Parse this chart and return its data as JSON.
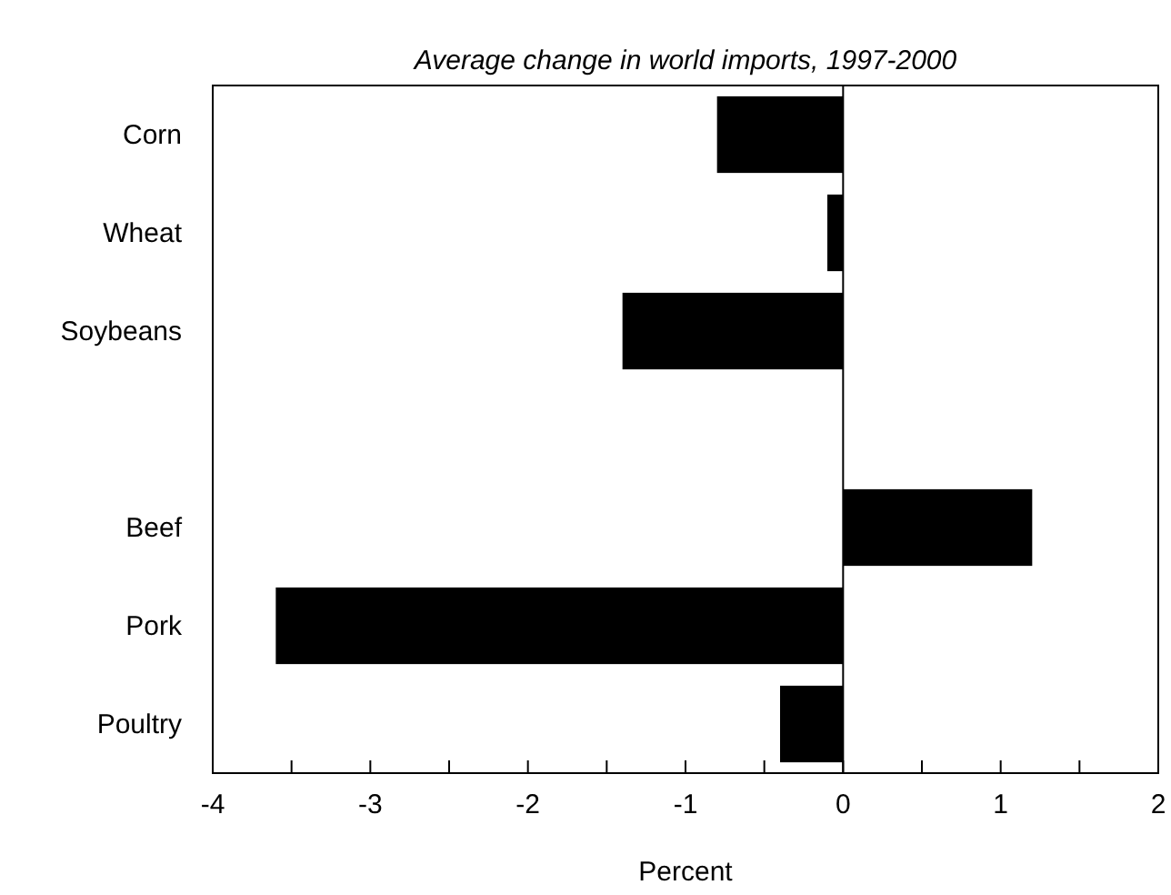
{
  "chart_data": {
    "type": "bar",
    "orientation": "horizontal",
    "title": "Average change in world imports, 1997-2000",
    "xlabel": "Percent",
    "categories": [
      "Corn",
      "Wheat",
      "Soybeans",
      null,
      "Beef",
      "Pork",
      "Poultry"
    ],
    "values": [
      -0.8,
      -0.1,
      -1.4,
      null,
      1.2,
      -3.6,
      -0.4
    ],
    "color": "#000000",
    "xlim": [
      -4,
      2
    ],
    "xticks": [
      -4,
      {
        "value": -3.5,
        "label": null
      },
      -3,
      {
        "value": -2.5,
        "label": null
      },
      -2,
      {
        "value": -1.5,
        "label": null
      },
      -1,
      {
        "value": -0.5,
        "label": null
      },
      0,
      {
        "value": 0.5,
        "label": null
      },
      1,
      {
        "value": 1.5,
        "label": null
      },
      2
    ],
    "ref_lines": [
      {
        "axis": "x",
        "value": 0
      }
    ],
    "grid": false
  }
}
